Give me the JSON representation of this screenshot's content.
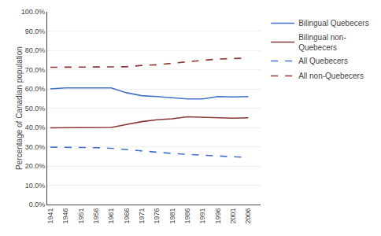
{
  "chart_data": {
    "type": "line",
    "x": [
      1941,
      1946,
      1951,
      1956,
      1961,
      1966,
      1971,
      1976,
      1981,
      1986,
      1991,
      1996,
      2001,
      2006
    ],
    "series": [
      {
        "name": "Bilingual Quebecers",
        "color": "#4472C4",
        "line_style": "solid",
        "values": [
          0.6,
          0.605,
          0.605,
          0.605,
          0.605,
          0.58,
          0.565,
          0.56,
          0.555,
          0.548,
          0.548,
          0.56,
          0.558,
          0.56
        ]
      },
      {
        "name": "Bilingual non-\nQuebecers",
        "color": "#8B3535",
        "line_style": "solid",
        "values": [
          0.398,
          0.398,
          0.398,
          0.398,
          0.4,
          0.415,
          0.43,
          0.44,
          0.445,
          0.455,
          0.452,
          0.45,
          0.448,
          0.45
        ]
      },
      {
        "name": "All Quebecers",
        "color": "#4472C4",
        "line_style": "dashed",
        "values": [
          0.298,
          0.298,
          0.297,
          0.295,
          0.292,
          0.285,
          0.278,
          0.272,
          0.265,
          0.26,
          0.256,
          0.252,
          0.245,
          0.244
        ]
      },
      {
        "name": "All non-Quebecers",
        "color": "#8B3535",
        "line_style": "dashed",
        "values": [
          0.712,
          0.712,
          0.712,
          0.712,
          0.712,
          0.715,
          0.722,
          0.725,
          0.733,
          0.742,
          0.748,
          0.755,
          0.758,
          0.76
        ]
      }
    ],
    "ylabel": "Percentage of Canadian population",
    "xlim": [
      1940,
      2010
    ],
    "xticks": [
      1941,
      1946,
      1951,
      1956,
      1961,
      1966,
      1971,
      1976,
      1981,
      1986,
      1991,
      1996,
      2001,
      2006
    ],
    "ylim": [
      0.0,
      1.0
    ],
    "yticks": [
      {
        "value": 0.0,
        "label": "0.0%"
      },
      {
        "value": 0.1,
        "label": "10.0%"
      },
      {
        "value": 0.2,
        "label": "20.0%"
      },
      {
        "value": 0.3,
        "label": "30.0%"
      },
      {
        "value": 0.4,
        "label": "40.0%"
      },
      {
        "value": 0.5,
        "label": "50.0%"
      },
      {
        "value": 0.6,
        "label": "60.0%"
      },
      {
        "value": 0.7,
        "label": "70.0%"
      },
      {
        "value": 0.8,
        "label": "80.0%"
      },
      {
        "value": 0.9,
        "label": "90.0%"
      },
      {
        "value": 1.0,
        "label": "100.0%"
      }
    ],
    "grid": true,
    "legend": "right"
  }
}
